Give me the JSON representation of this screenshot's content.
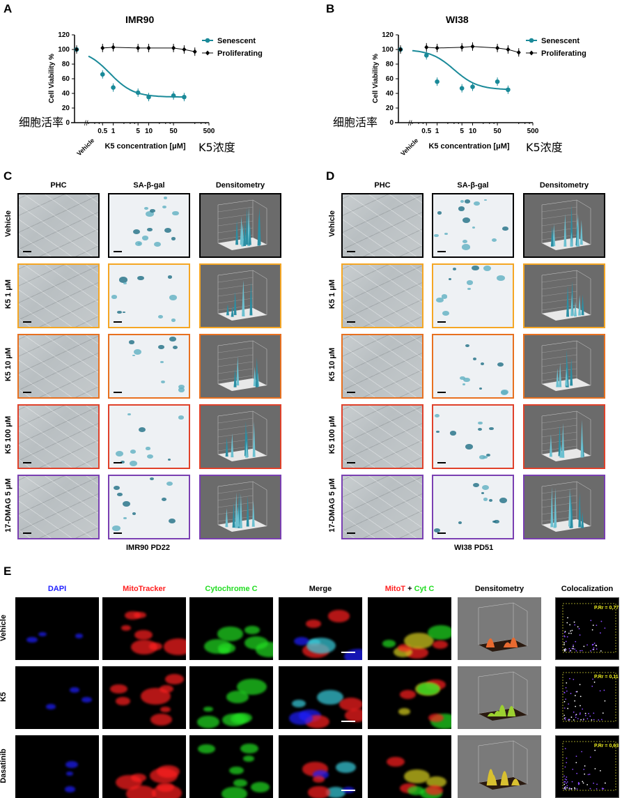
{
  "panels": {
    "A": {
      "letter": "A",
      "title": "IMR90",
      "ylabel": "Cell Viability %",
      "xlabel": "K5 concentration [μM]",
      "xlabel_cn": "K5浓度",
      "ylabel_cn": "细胞活率",
      "vehicle": "Vehicle",
      "yticks": [
        "120",
        "100",
        "80",
        "60",
        "40",
        "20",
        "0"
      ],
      "xticks": [
        "0.5",
        "1",
        "5",
        "10",
        "50",
        "500"
      ],
      "legend": [
        "Senescent",
        "Proliferating"
      ]
    },
    "B": {
      "letter": "B",
      "title": "WI38",
      "ylabel": "Cell Viability %",
      "xlabel": "K5 concentration [μM]",
      "xlabel_cn": "K5浓度",
      "ylabel_cn": "细胞活率",
      "vehicle": "Vehicle",
      "yticks": [
        "120",
        "100",
        "80",
        "60",
        "40",
        "20",
        "0"
      ],
      "xticks": [
        "0.5",
        "1",
        "5",
        "10",
        "50",
        "500"
      ],
      "legend": [
        "Senescent",
        "Proliferating"
      ]
    },
    "C": {
      "letter": "C",
      "caption": "IMR90 PD22"
    },
    "D": {
      "letter": "D",
      "caption": "WI38 PD51"
    },
    "E": {
      "letter": "E"
    }
  },
  "grid_columns": [
    "PHC",
    "SA-β-gal",
    "Densitometry"
  ],
  "grid_rows": [
    "Vehicle",
    "K5 1 μM",
    "K5 10 μM",
    "K5 100 μM",
    "17-DMAG 5 μM"
  ],
  "grid_row_colors": [
    "#000000",
    "#f5a623",
    "#e8701f",
    "#e0412a",
    "#7a3fb2"
  ],
  "e_columns": [
    "DAPI",
    "MitoTracker",
    "Cytochrome C",
    "Merge",
    "Densitometry",
    "Colocalization"
  ],
  "e_merge2": {
    "a": "MitoT",
    "plus": " + ",
    "b": "Cyt C"
  },
  "e_rows": [
    "Vehicle",
    "K5",
    "Dasatinib"
  ],
  "e_coloc": [
    "P.Rr = 0,77",
    "P.Rr = 0,11",
    "P.Rr = 0,63"
  ],
  "colors": {
    "senescent": "#1a8a99",
    "proliferating": "#000000",
    "dapi": "#1f1fff",
    "mito": "#ff2020",
    "cytc": "#22dd22"
  },
  "chart_data": [
    {
      "type": "line",
      "title": "IMR90",
      "xlabel": "K5 concentration [μM]",
      "ylabel": "Cell Viability %",
      "ylim": [
        0,
        120
      ],
      "x_scale": "log",
      "series": [
        {
          "name": "Senescent",
          "x": [
            "Vehicle",
            0.5,
            1,
            5,
            10,
            50,
            100
          ],
          "values": [
            100,
            66,
            48,
            41,
            35,
            37,
            35
          ]
        },
        {
          "name": "Proliferating",
          "x": [
            "Vehicle",
            0.5,
            1,
            5,
            10,
            50,
            100,
            200
          ],
          "values": [
            100,
            102,
            103,
            102,
            102,
            102,
            100,
            97
          ]
        }
      ]
    },
    {
      "type": "line",
      "title": "WI38",
      "xlabel": "K5 concentration [μM]",
      "ylabel": "Cell Viability %",
      "ylim": [
        0,
        120
      ],
      "x_scale": "log",
      "series": [
        {
          "name": "Senescent",
          "x": [
            "Vehicle",
            0.5,
            1,
            5,
            10,
            50,
            100
          ],
          "values": [
            100,
            92,
            56,
            47,
            49,
            56,
            45
          ]
        },
        {
          "name": "Proliferating",
          "x": [
            "Vehicle",
            0.5,
            1,
            5,
            10,
            50,
            100,
            200
          ],
          "values": [
            100,
            103,
            102,
            103,
            104,
            102,
            100,
            96
          ]
        }
      ]
    }
  ]
}
